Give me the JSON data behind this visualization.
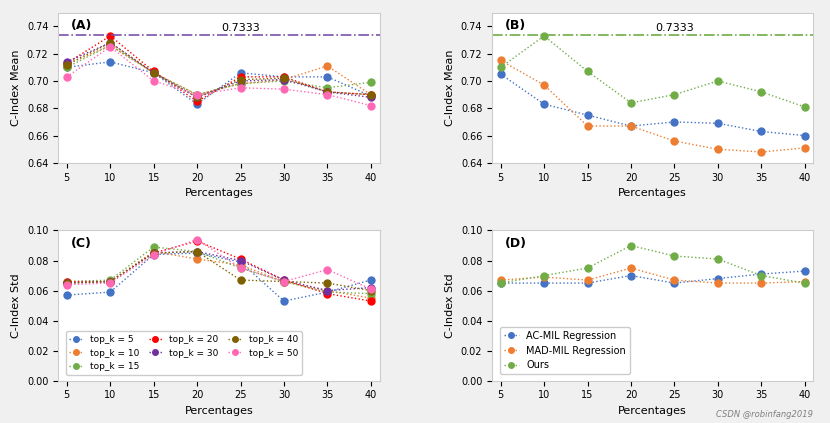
{
  "percentages": [
    5,
    10,
    15,
    20,
    25,
    30,
    35,
    40
  ],
  "hline_value": 0.7333,
  "panel_A": {
    "title": "(A)",
    "ylabel": "C-Index Mean",
    "xlabel": "Percentages",
    "ylim": [
      0.64,
      0.75
    ],
    "hline_color": "#7B52AB",
    "hline_label": "0.7333",
    "series": {
      "top_k_5": {
        "color": "#4472C4",
        "values": [
          0.71,
          0.714,
          0.706,
          0.683,
          0.706,
          0.703,
          0.703,
          0.689
        ]
      },
      "top_k_10": {
        "color": "#ED7D31",
        "values": [
          0.712,
          0.726,
          0.706,
          0.69,
          0.698,
          0.701,
          0.711,
          0.69
        ]
      },
      "top_k_15": {
        "color": "#70AD47",
        "values": [
          0.71,
          0.726,
          0.706,
          0.69,
          0.698,
          0.7,
          0.695,
          0.699
        ]
      },
      "top_k_20": {
        "color": "#FF0000",
        "values": [
          0.713,
          0.733,
          0.707,
          0.685,
          0.703,
          0.703,
          0.692,
          0.69
        ]
      },
      "top_k_30": {
        "color": "#7030A0",
        "values": [
          0.714,
          0.728,
          0.706,
          0.688,
          0.7,
          0.701,
          0.692,
          0.688
        ]
      },
      "top_k_40": {
        "color": "#7F6000",
        "values": [
          0.712,
          0.728,
          0.706,
          0.688,
          0.701,
          0.702,
          0.692,
          0.69
        ]
      },
      "top_k_50": {
        "color": "#FF69B4",
        "values": [
          0.703,
          0.725,
          0.7,
          0.69,
          0.695,
          0.694,
          0.69,
          0.682
        ]
      }
    }
  },
  "panel_B": {
    "title": "(B)",
    "ylabel": "C-Index Mean",
    "xlabel": "Percentages",
    "ylim": [
      0.64,
      0.75
    ],
    "hline_color": "#70AD47",
    "hline_label": "0.7333",
    "series": {
      "AC_MIL": {
        "color": "#4472C4",
        "values": [
          0.705,
          0.683,
          0.675,
          0.667,
          0.67,
          0.669,
          0.663,
          0.66
        ]
      },
      "MAD_MIL": {
        "color": "#ED7D31",
        "values": [
          0.715,
          0.697,
          0.667,
          0.667,
          0.656,
          0.65,
          0.648,
          0.651
        ]
      },
      "Ours": {
        "color": "#70AD47",
        "values": [
          0.71,
          0.733,
          0.707,
          0.684,
          0.69,
          0.7,
          0.692,
          0.681
        ]
      }
    }
  },
  "panel_C": {
    "title": "(C)",
    "ylabel": "C-Index Std",
    "xlabel": "Percentages",
    "ylim": [
      0.0,
      0.1
    ],
    "series": {
      "top_k_5": {
        "color": "#4472C4",
        "values": [
          0.057,
          0.059,
          0.084,
          0.085,
          0.079,
          0.053,
          0.059,
          0.067
        ]
      },
      "top_k_10": {
        "color": "#ED7D31",
        "values": [
          0.065,
          0.066,
          0.086,
          0.081,
          0.077,
          0.066,
          0.06,
          0.055
        ]
      },
      "top_k_15": {
        "color": "#70AD47",
        "values": [
          0.066,
          0.067,
          0.089,
          0.086,
          0.075,
          0.066,
          0.059,
          0.058
        ]
      },
      "top_k_20": {
        "color": "#FF0000",
        "values": [
          0.066,
          0.066,
          0.085,
          0.093,
          0.081,
          0.067,
          0.058,
          0.053
        ]
      },
      "top_k_30": {
        "color": "#7030A0",
        "values": [
          0.065,
          0.066,
          0.085,
          0.086,
          0.08,
          0.067,
          0.06,
          0.062
        ]
      },
      "top_k_40": {
        "color": "#7F6000",
        "values": [
          0.065,
          0.066,
          0.085,
          0.086,
          0.067,
          0.066,
          0.065,
          0.06
        ]
      },
      "top_k_50": {
        "color": "#FF69B4",
        "values": [
          0.064,
          0.065,
          0.084,
          0.094,
          0.075,
          0.066,
          0.074,
          0.061
        ]
      }
    }
  },
  "panel_D": {
    "title": "(D)",
    "ylabel": "C-Index Std",
    "xlabel": "Percentages",
    "ylim": [
      0.0,
      0.1
    ],
    "series": {
      "AC_MIL": {
        "color": "#4472C4",
        "values": [
          0.065,
          0.065,
          0.065,
          0.07,
          0.065,
          0.068,
          0.071,
          0.073
        ]
      },
      "MAD_MIL": {
        "color": "#ED7D31",
        "values": [
          0.067,
          0.069,
          0.067,
          0.075,
          0.067,
          0.065,
          0.065,
          0.066
        ]
      },
      "Ours": {
        "color": "#70AD47",
        "values": [
          0.065,
          0.07,
          0.075,
          0.09,
          0.083,
          0.081,
          0.07,
          0.065
        ]
      }
    }
  },
  "legend_C": {
    "entries": [
      {
        "label": "top_k = 5",
        "color": "#4472C4"
      },
      {
        "label": "top_k = 10",
        "color": "#ED7D31"
      },
      {
        "label": "top_k = 15",
        "color": "#70AD47"
      },
      {
        "label": "top_k = 20",
        "color": "#FF0000"
      },
      {
        "label": "top_k = 30",
        "color": "#7030A0"
      },
      {
        "label": "top_k = 40",
        "color": "#7F6000"
      },
      {
        "label": "top_k = 50",
        "color": "#FF69B4"
      }
    ]
  },
  "legend_D": {
    "entries": [
      {
        "label": "AC-MIL Regression",
        "color": "#4472C4"
      },
      {
        "label": "MAD-MIL Regression",
        "color": "#ED7D31"
      },
      {
        "label": "Ours",
        "color": "#70AD47"
      }
    ]
  },
  "background_color": "#F0F0F0",
  "watermark": "CSDN @robinfang2019"
}
